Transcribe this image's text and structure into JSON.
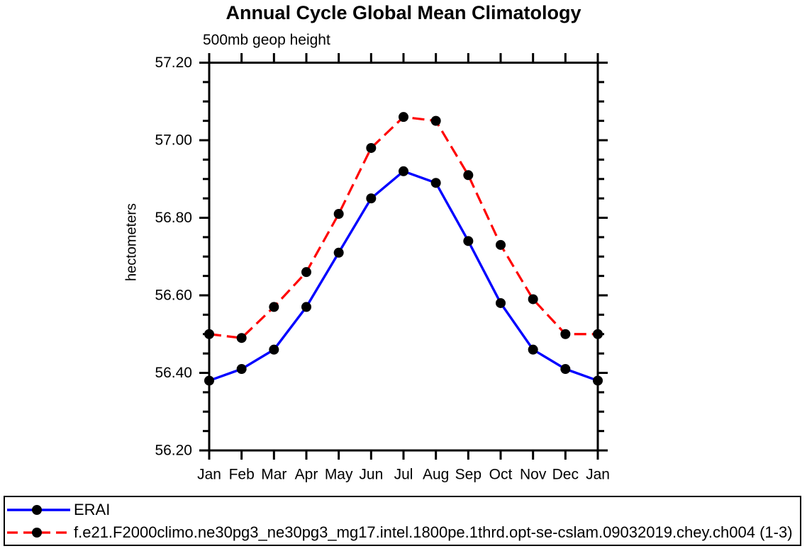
{
  "chart_data": {
    "type": "line",
    "title": "Annual Cycle Global Mean Climatology",
    "subtitle": "500mb geop height",
    "ylabel": "hectometers",
    "x_tick_labels": [
      "Jan",
      "Feb",
      "Mar",
      "Apr",
      "May",
      "Jun",
      "Jul",
      "Aug",
      "Sep",
      "Oct",
      "Nov",
      "Dec",
      "Jan"
    ],
    "y_ticks": [
      56.2,
      56.4,
      56.6,
      56.8,
      57.0,
      57.2
    ],
    "y_tick_labels": [
      "56.20",
      "56.40",
      "56.60",
      "56.80",
      "57.00",
      "57.20"
    ],
    "ylim": [
      56.2,
      57.2
    ],
    "y_minor_step": 0.05,
    "grid": false,
    "legend_position": "bottom-outside",
    "marker": "filled-circle",
    "marker_color": "#000000",
    "axis_color": "#000000",
    "series": [
      {
        "name": "ERAI",
        "color": "#0000ff",
        "style": "solid",
        "values": [
          56.38,
          56.41,
          56.46,
          56.57,
          56.71,
          56.85,
          56.92,
          56.89,
          56.74,
          56.58,
          56.46,
          56.41,
          56.38
        ]
      },
      {
        "name": "f.e21.F2000climo.ne30pg3_ne30pg3_mg17.intel.1800pe.1thrd.opt-se-cslam.09032019.chey.ch004 (1-3)",
        "color": "#ff0000",
        "style": "dashed",
        "values": [
          56.5,
          56.49,
          56.57,
          56.66,
          56.81,
          56.98,
          57.06,
          57.05,
          56.91,
          56.73,
          56.59,
          56.5,
          56.5
        ]
      }
    ]
  }
}
